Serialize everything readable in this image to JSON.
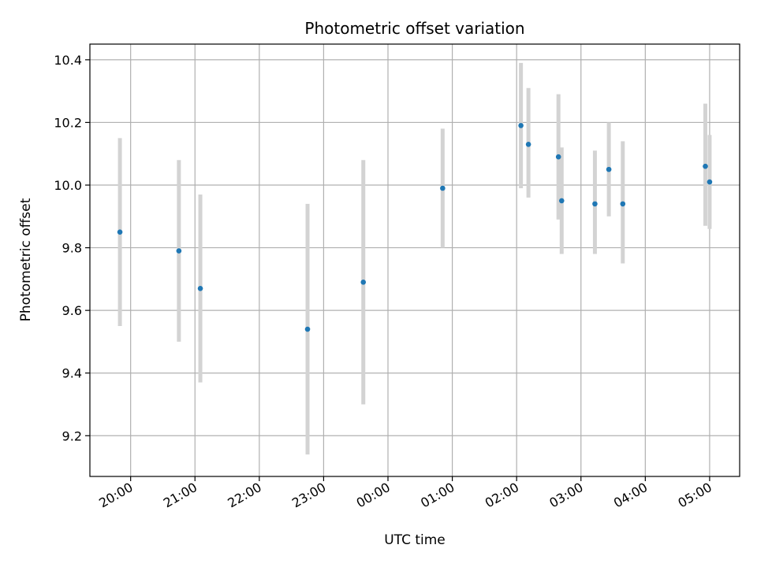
{
  "chart_data": {
    "type": "scatter",
    "title": "Photometric offset variation",
    "xlabel": "UTC time",
    "ylabel": "Photometric offset",
    "ylim": [
      9.07,
      10.45
    ],
    "y_ticks": [
      9.2,
      9.4,
      9.6,
      9.8,
      10.0,
      10.2,
      10.4
    ],
    "y_tick_labels": [
      "9.2",
      "9.4",
      "9.6",
      "9.8",
      "10.0",
      "10.2",
      "10.4"
    ],
    "xlim": [
      "19:22",
      "05:28"
    ],
    "x_ticks": [
      "20:00",
      "21:00",
      "22:00",
      "23:00",
      "00:00",
      "01:00",
      "02:00",
      "03:00",
      "04:00",
      "05:00"
    ],
    "grid": true,
    "marker_color": "#1f77b4",
    "errorbar_color": "#d3d3d3",
    "points": [
      {
        "x": "19:50",
        "y": 9.85,
        "lo": 9.55,
        "hi": 10.15
      },
      {
        "x": "20:45",
        "y": 9.79,
        "lo": 9.5,
        "hi": 10.08
      },
      {
        "x": "21:05",
        "y": 9.67,
        "lo": 9.37,
        "hi": 9.97
      },
      {
        "x": "22:45",
        "y": 9.54,
        "lo": 9.14,
        "hi": 9.94
      },
      {
        "x": "23:37",
        "y": 9.69,
        "lo": 9.3,
        "hi": 10.08
      },
      {
        "x": "00:51",
        "y": 9.99,
        "lo": 9.8,
        "hi": 10.18
      },
      {
        "x": "02:04",
        "y": 10.19,
        "lo": 9.99,
        "hi": 10.39
      },
      {
        "x": "02:11",
        "y": 10.13,
        "lo": 9.96,
        "hi": 10.31
      },
      {
        "x": "02:39",
        "y": 10.09,
        "lo": 9.89,
        "hi": 10.29
      },
      {
        "x": "02:42",
        "y": 9.95,
        "lo": 9.78,
        "hi": 10.12
      },
      {
        "x": "03:13",
        "y": 9.94,
        "lo": 9.78,
        "hi": 10.11
      },
      {
        "x": "03:26",
        "y": 10.05,
        "lo": 9.9,
        "hi": 10.2
      },
      {
        "x": "03:39",
        "y": 9.94,
        "lo": 9.75,
        "hi": 10.14
      },
      {
        "x": "04:56",
        "y": 10.06,
        "lo": 9.87,
        "hi": 10.26
      },
      {
        "x": "05:00",
        "y": 10.01,
        "lo": 9.86,
        "hi": 10.16
      }
    ]
  }
}
